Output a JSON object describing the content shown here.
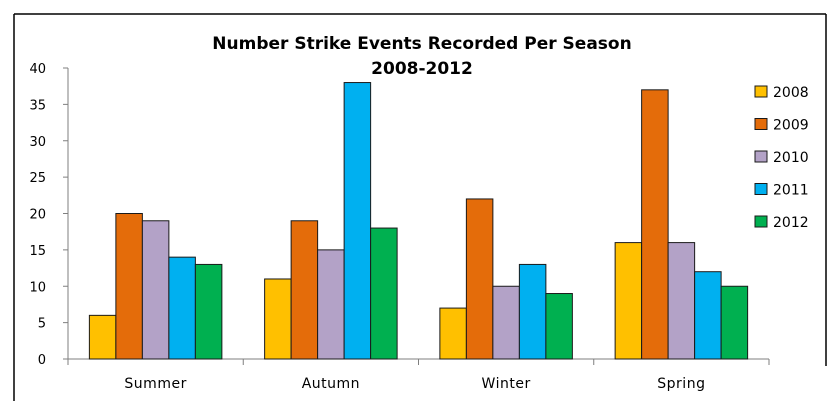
{
  "chart_data": {
    "type": "bar",
    "title": "Number Strike Events Recorded Per Season",
    "subtitle": "2008-2012",
    "categories": [
      "Summer",
      "Autumn",
      "Winter",
      "Spring"
    ],
    "series": [
      {
        "name": "2008",
        "color": "#FFC000",
        "values": [
          6,
          11,
          7,
          16
        ]
      },
      {
        "name": "2009",
        "color": "#E46C0A",
        "values": [
          20,
          19,
          22,
          37
        ]
      },
      {
        "name": "2010",
        "color": "#B3A2C7",
        "values": [
          19,
          15,
          10,
          16
        ]
      },
      {
        "name": "2011",
        "color": "#00B0F0",
        "values": [
          14,
          38,
          13,
          12
        ]
      },
      {
        "name": "2012",
        "color": "#00B050",
        "values": [
          13,
          18,
          9,
          10
        ]
      }
    ],
    "yticks": [
      "0",
      "5",
      "10",
      "15",
      "20",
      "25",
      "30",
      "35",
      "40"
    ],
    "ylim": [
      0,
      40
    ],
    "xlabel": "",
    "ylabel": "",
    "grid": false,
    "legend_position": "right"
  }
}
